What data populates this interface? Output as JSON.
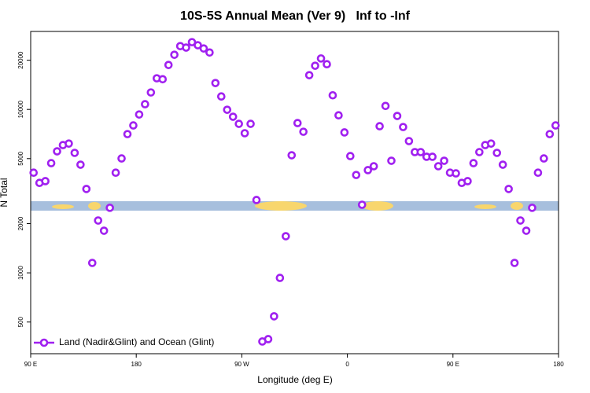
{
  "chart_data": {
    "type": "scatter",
    "title": "10S-5S Annual Mean (Ver 9)   Inf to -Inf",
    "xlabel": "Longitude (deg E)",
    "ylabel": "N Total",
    "yscale": "log",
    "xlim": [
      90,
      540
    ],
    "ylim": [
      320,
      30000
    ],
    "xticks": [
      {
        "value": 90,
        "label": "90 E"
      },
      180,
      {
        "value": 270,
        "label": "90 W"
      },
      {
        "value": 360,
        "label": "0"
      },
      {
        "value": 450,
        "label": "90 E"
      },
      {
        "value": 540,
        "label": "180"
      }
    ],
    "yticks": [
      500,
      1000,
      2000,
      5000,
      10000,
      20000
    ],
    "legend": "lower left",
    "series": [
      {
        "name": "Land (Nadir&Glint) and Ocean (Glint)",
        "color": "#a020f0",
        "x": [
          92.5,
          97.5,
          102.5,
          107.5,
          112.5,
          117.5,
          122.5,
          127.5,
          132.5,
          137.5,
          142.5,
          147.5,
          152.5,
          157.5,
          162.5,
          167.5,
          172.5,
          177.5,
          182.5,
          187.5,
          192.5,
          197.5,
          202.5,
          207.5,
          212.5,
          217.5,
          222.5,
          227.5,
          232.5,
          237.5,
          242.5,
          247.5,
          252.5,
          257.5,
          262.5,
          267.5,
          272.5,
          277.5,
          282.5,
          287.5,
          292.5,
          297.5,
          302.5,
          307.5,
          312.5,
          317.5,
          322.5,
          327.5,
          332.5,
          337.5,
          342.5,
          347.5,
          352.5,
          357.5,
          362.5,
          367.5,
          372.5,
          377.5,
          382.5,
          387.5,
          392.5,
          397.5,
          402.5,
          407.5,
          412.5,
          417.5,
          422.5,
          427.5,
          432.5,
          437.5,
          442.5,
          447.5,
          452.5,
          457.5,
          462.5,
          467.5,
          472.5,
          477.5,
          482.5,
          487.5,
          492.5,
          497.5,
          502.5,
          507.5,
          512.5,
          517.5,
          522.5,
          527.5,
          532.5,
          537.5
        ],
        "values": [
          4100,
          3550,
          3640,
          4690,
          5540,
          6050,
          6180,
          5420,
          4590,
          3260,
          1150,
          2090,
          1810,
          2500,
          4100,
          5010,
          7060,
          7980,
          9310,
          10760,
          12700,
          15500,
          15300,
          18700,
          21600,
          24400,
          23900,
          25800,
          24700,
          23600,
          22300,
          14500,
          12000,
          9950,
          9020,
          8160,
          7150,
          8160,
          2790,
          380,
          393,
          542,
          931,
          1675,
          5240,
          8250,
          7300,
          16200,
          18500,
          20500,
          18900,
          12200,
          9200,
          7230,
          5180,
          3970,
          2610,
          4250,
          4490,
          7890,
          10500,
          4850,
          9120,
          7800,
          6400,
          5480,
          5480,
          5130,
          5130,
          4490,
          4850,
          4100,
          4060,
          3550,
          3640,
          4690,
          5480,
          6050,
          6180,
          5420,
          4590,
          3260,
          1150,
          2090,
          1810,
          2500,
          4100,
          5010,
          7060,
          7980
        ]
      }
    ]
  }
}
